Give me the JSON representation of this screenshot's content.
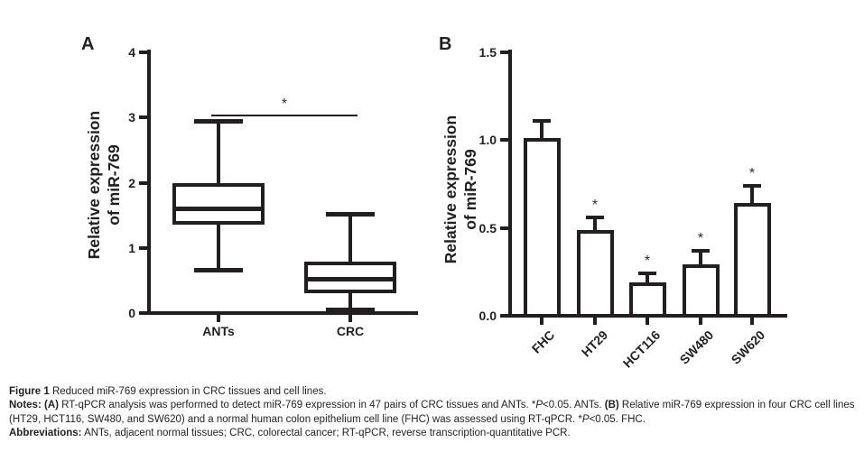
{
  "panels": {
    "a": {
      "label": "A",
      "ylabel_line1": "Relative expression",
      "ylabel_line2": "of miR-769"
    },
    "b": {
      "label": "B",
      "ylabel_line1": "Relative expression",
      "ylabel_line2": "of miR-769"
    }
  },
  "chart_data": [
    {
      "id": "A",
      "type": "boxplot",
      "ylabel": "Relative expression of miR-769",
      "ylim": [
        0,
        4
      ],
      "yticks": [
        {
          "value": 0,
          "label": "0"
        },
        {
          "value": 1,
          "label": "1"
        },
        {
          "value": 2,
          "label": "2"
        },
        {
          "value": 3,
          "label": "3"
        },
        {
          "value": 4,
          "label": "4"
        }
      ],
      "categories": [
        "ANTs",
        "CRC"
      ],
      "boxes": [
        {
          "category": "ANTs",
          "whisker_low": 0.67,
          "q1": 1.38,
          "median": 1.6,
          "q3": 1.96,
          "whisker_high": 2.95
        },
        {
          "category": "CRC",
          "whisker_low": 0.05,
          "q1": 0.33,
          "median": 0.52,
          "q3": 0.76,
          "whisker_high": 1.52
        }
      ],
      "significance": {
        "label": "*",
        "y": 3.05,
        "from": "ANTs",
        "to": "CRC"
      }
    },
    {
      "id": "B",
      "type": "bar",
      "ylabel": "Relative expression of miR-769",
      "ylim": [
        0,
        1.5
      ],
      "yticks": [
        {
          "value": 0,
          "label": "0.0"
        },
        {
          "value": 0.5,
          "label": "0.5"
        },
        {
          "value": 1,
          "label": "1.0"
        },
        {
          "value": 1.5,
          "label": "1.5"
        }
      ],
      "categories": [
        "FHC",
        "HT29",
        "HCT116",
        "SW480",
        "SW620"
      ],
      "values": [
        1.0,
        0.48,
        0.18,
        0.28,
        0.63
      ],
      "errors_plus": [
        0.11,
        0.08,
        0.06,
        0.09,
        0.11
      ],
      "significant": [
        false,
        true,
        true,
        true,
        true
      ],
      "sig_label": "*"
    }
  ],
  "caption": {
    "figure_label": "Figure 1",
    "figure_text": "Reduced miR-769 expression in CRC tissues and cell lines.",
    "notes_label": "Notes:",
    "panel_a_ref": "(A)",
    "notes_a": "RT-qPCR analysis was performed to detect miR-769 expression in 47 pairs of CRC tissues and ANTs. *",
    "notes_a_p": "P",
    "notes_a_rest": "<0.05. ANTs.",
    "panel_b_ref": "(B)",
    "notes_b": "Relative miR-769 expression in four CRC cell lines (HT29, HCT116, SW480, and SW620) and a normal human colon epithelium cell line (FHC) was assessed using RT-qPCR. *",
    "notes_b_p": "P",
    "notes_b_rest": "<0.05. FHC.",
    "abbreviations_label": "Abbreviations:",
    "abbreviations_text": "ANTs, adjacent normal tissues; CRC, colorectal cancer; RT-qPCR, reverse transcription-quantitative PCR."
  }
}
